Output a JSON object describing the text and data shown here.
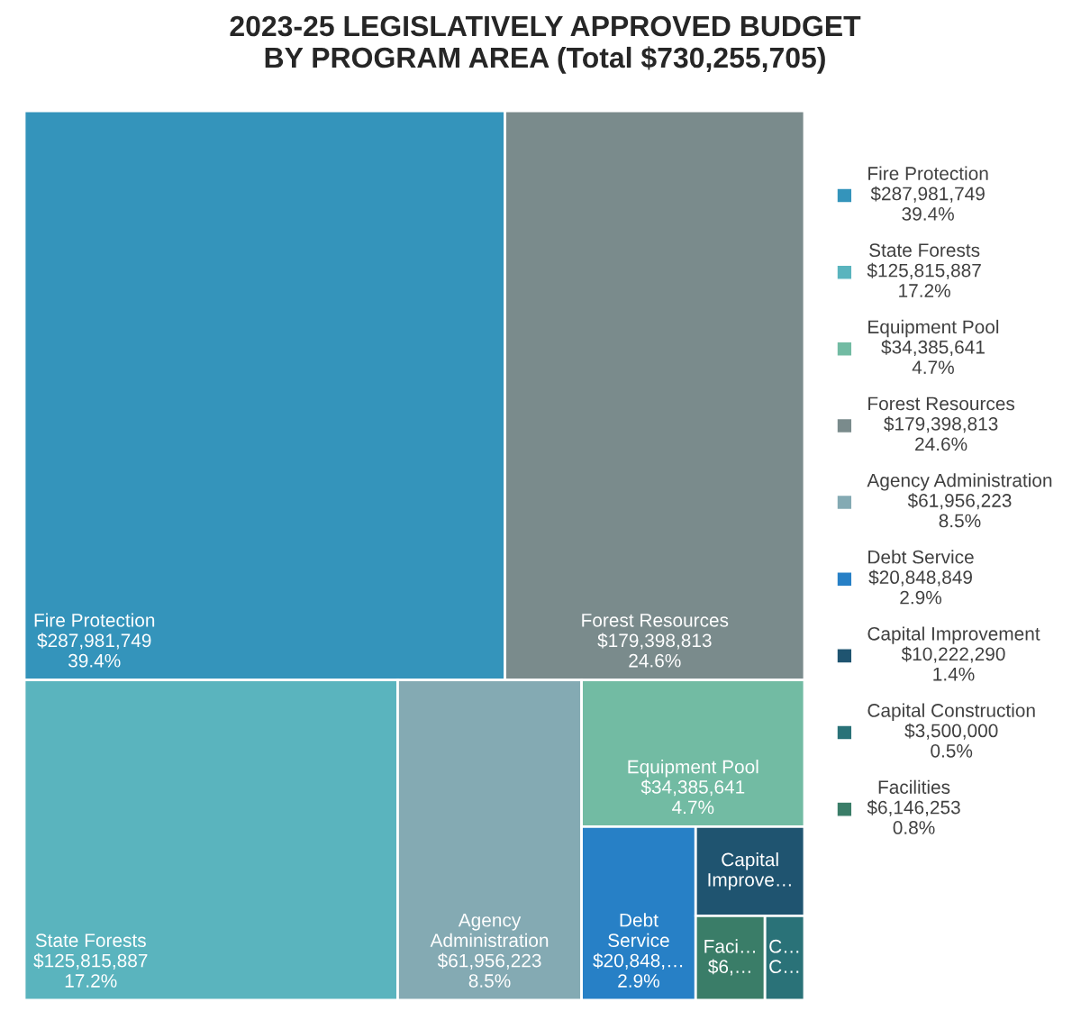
{
  "chart_data": {
    "type": "other",
    "title": "2023-25 LEGISLATIVELY APPROVED BUDGET\nBY PROGRAM AREA (Total $730,255,705)",
    "categories": [
      "Fire Protection",
      "State Forests",
      "Equipment Pool",
      "Forest Resources",
      "Agency Administration",
      "Debt Service",
      "Capital Improvement",
      "Capital Construction",
      "Facilities"
    ],
    "values": [
      287981749,
      125815887,
      34385641,
      179398813,
      61956223,
      20848849,
      10222290,
      3500000,
      6146253
    ],
    "colors": [
      "#3494bb",
      "#5ab4be",
      "#72bba3",
      "#7a8b8c",
      "#84aab3",
      "#2780c6",
      "#1f5470",
      "#2a7278",
      "#3a7d68"
    ],
    "value_labels": [
      "$287,981,749\n39.4%",
      "$125,815,887\n17.2%",
      "$34,385,641\n4.7%",
      "$179,398,813\n24.6%",
      "$61,956,223\n8.5%",
      "$20,848,849\n2.9%",
      "$10,222,290\n1.4%",
      "$3,500,000\n0.5%",
      "$6,146,253\n0.8%"
    ],
    "cell_labels": [
      "Fire Protection\n$287,981,749\n39.4%",
      "State Forests\n$125,815,887\n17.2%",
      "Equipment Pool\n$34,385,641\n4.7%",
      "Forest Resources\n$179,398,813\n24.6%",
      "Agency\nAdministration\n$61,956,223\n8.5%",
      "Debt\nService\n$20,848,…\n2.9%",
      "Capital\nImprove…",
      "C…\nC…",
      "Faci…\n$6,…"
    ]
  }
}
